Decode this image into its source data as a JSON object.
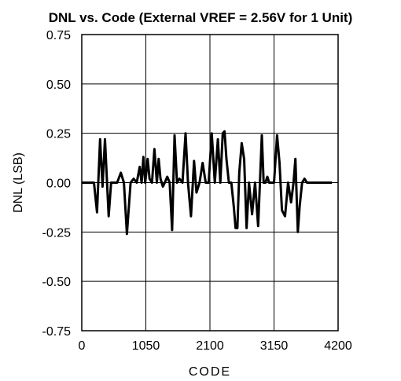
{
  "chart_data": {
    "type": "line",
    "title": "DNL vs. Code (External VREF = 2.56V for 1 Unit)",
    "xlabel": "CODE",
    "ylabel": "DNL (LSB)",
    "xlim": [
      0,
      4200
    ],
    "ylim": [
      -0.75,
      0.75
    ],
    "xticks": [
      "0",
      "1050",
      "2100",
      "3150",
      "4200"
    ],
    "yticks": [
      "0.75",
      "0.50",
      "0.25",
      "0.00",
      "-0.25",
      "-0.50",
      "-0.75"
    ],
    "grid": true,
    "series": [
      {
        "x": [
          0,
          100,
          200,
          250,
          300,
          340,
          380,
          440,
          480,
          520,
          580,
          640,
          690,
          740,
          800,
          850,
          900,
          950,
          980,
          1010,
          1040,
          1080,
          1110,
          1150,
          1190,
          1230,
          1260,
          1290,
          1330,
          1360,
          1400,
          1440,
          1480,
          1520,
          1560,
          1600,
          1650,
          1700,
          1740,
          1790,
          1840,
          1880,
          1930,
          1980,
          2030,
          2080,
          2130,
          2180,
          2230,
          2270,
          2310,
          2340,
          2370,
          2410,
          2450,
          2490,
          2520,
          2550,
          2580,
          2620,
          2660,
          2700,
          2740,
          2790,
          2840,
          2890,
          2920,
          2950,
          2980,
          3010,
          3040,
          3070,
          3110,
          3150,
          3200,
          3240,
          3280,
          3330,
          3380,
          3430,
          3470,
          3500,
          3540,
          3570,
          3610,
          3650,
          3690,
          3730,
          3770,
          3800,
          3840,
          3880,
          3920,
          3970,
          4030,
          4100
        ],
        "y": [
          0.0,
          0.0,
          0.0,
          -0.15,
          0.22,
          -0.02,
          0.22,
          -0.17,
          0.0,
          0.0,
          0.0,
          0.05,
          0.0,
          -0.26,
          0.0,
          0.02,
          0.0,
          0.08,
          0.0,
          0.13,
          0.0,
          0.12,
          0.02,
          0.0,
          0.17,
          0.0,
          0.12,
          0.02,
          -0.02,
          0.0,
          0.03,
          0.0,
          -0.24,
          0.24,
          0.0,
          0.02,
          0.0,
          0.25,
          0.0,
          -0.17,
          0.11,
          -0.05,
          0.0,
          0.1,
          0.0,
          0.0,
          0.25,
          0.0,
          0.22,
          0.0,
          0.25,
          0.26,
          0.12,
          0.0,
          0.0,
          -0.12,
          -0.23,
          -0.23,
          0.05,
          0.2,
          0.12,
          -0.23,
          0.0,
          -0.16,
          0.0,
          -0.22,
          0.0,
          0.24,
          0.0,
          0.0,
          0.03,
          0.0,
          0.0,
          0.0,
          0.24,
          0.1,
          -0.14,
          -0.17,
          0.0,
          -0.1,
          0.0,
          0.12,
          -0.25,
          -0.12,
          0.0,
          0.02,
          0.0,
          0.0,
          0.0,
          0.0,
          0.0,
          0.0,
          0.0,
          0.0,
          0.0,
          0.0
        ]
      }
    ]
  }
}
